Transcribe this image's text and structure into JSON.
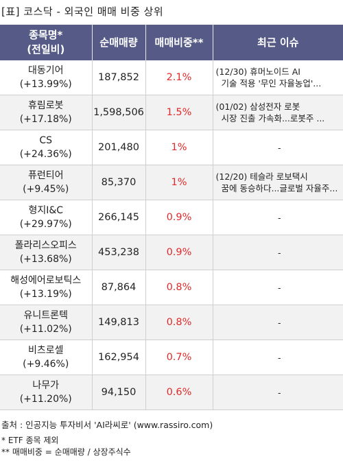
{
  "title": "[표] 코스닥 - 외국인 매매 비중 상위",
  "headers": {
    "name_line1": "종목명*",
    "name_line2": "(전일비)",
    "net_volume": "순매매량",
    "ratio": "매매비중**",
    "issue": "최근 이슈"
  },
  "rows": [
    {
      "name": "대동기어",
      "change": "(+13.99%)",
      "volume": "187,852",
      "ratio": "2.1%",
      "issue_l1": "(12/30) 휴머노이드 AI",
      "issue_l2": "기술 적용 '무인 자율농업'..."
    },
    {
      "name": "휴림로봇",
      "change": "(+17.18%)",
      "volume": "1,598,506",
      "ratio": "1.5%",
      "issue_l1": "(01/02) 삼성전자 로봇",
      "issue_l2": "시장 진출 가속화...로봇주 ..."
    },
    {
      "name": "CS",
      "change": "(+24.36%)",
      "volume": "201,480",
      "ratio": "1%",
      "issue_l1": "",
      "issue_l2": "",
      "issue_dash": "-"
    },
    {
      "name": "퓨런티어",
      "change": "(+9.45%)",
      "volume": "85,370",
      "ratio": "1%",
      "issue_l1": "(12/20) 테슬라 로보택시",
      "issue_l2": "꿈에 동승하다...글로벌 자율주..."
    },
    {
      "name": "형지I&C",
      "change": "(+29.97%)",
      "volume": "266,145",
      "ratio": "0.9%",
      "issue_l1": "",
      "issue_l2": "",
      "issue_dash": "-"
    },
    {
      "name": "폴라리스오피스",
      "change": "(+13.68%)",
      "volume": "453,238",
      "ratio": "0.9%",
      "issue_l1": "",
      "issue_l2": "",
      "issue_dash": "-"
    },
    {
      "name": "해성에어로보틱스",
      "change": "(+13.19%)",
      "volume": "87,864",
      "ratio": "0.8%",
      "issue_l1": "",
      "issue_l2": "",
      "issue_dash": "-"
    },
    {
      "name": "유니트론텍",
      "change": "(+11.02%)",
      "volume": "149,813",
      "ratio": "0.8%",
      "issue_l1": "",
      "issue_l2": "",
      "issue_dash": "-"
    },
    {
      "name": "비츠로셀",
      "change": "(+9.46%)",
      "volume": "162,954",
      "ratio": "0.7%",
      "issue_l1": "",
      "issue_l2": "",
      "issue_dash": "-"
    },
    {
      "name": "나무가",
      "change": "(+11.20%)",
      "volume": "94,150",
      "ratio": "0.6%",
      "issue_l1": "",
      "issue_l2": "",
      "issue_dash": "-"
    }
  ],
  "source": "출처 : 인공지능 투자비서 'AI라씨로' (www.rassiro.com)",
  "note1": "* ETF 종목 제외",
  "note2": "** 매매비중 = 순매매량 / 상장주식수",
  "colors": {
    "header_bg": "#555a86",
    "ratio_red": "#e02a2a",
    "stripe": "#f2f2f2"
  }
}
